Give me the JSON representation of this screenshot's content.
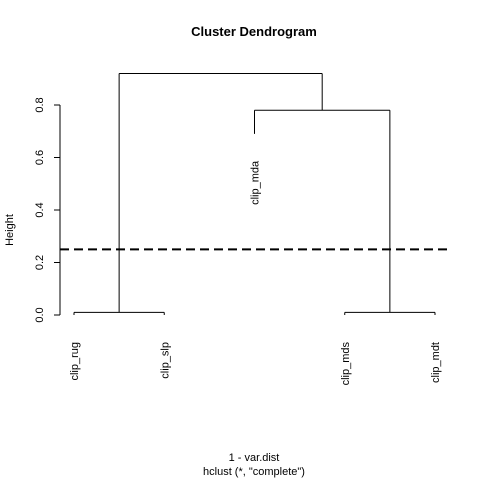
{
  "chart_data": {
    "type": "dendrogram",
    "title": "Cluster Dendrogram",
    "xlabel": "1 - var.dist",
    "sub": "hclust (*, \"complete\")",
    "ylabel": "Height",
    "ylim": [
      0,
      0.96
    ],
    "y_ticks": [
      0.0,
      0.2,
      0.4,
      0.6,
      0.8
    ],
    "y_tick_labels": [
      "0.0",
      "0.2",
      "0.4",
      "0.6",
      "0.8"
    ],
    "leaves": [
      "clip_rug",
      "clip_slp",
      "clip_mda",
      "clip_mds",
      "clip_mdt"
    ],
    "merges": [
      {
        "left": "clip_rug",
        "right": "clip_slp",
        "height": 0.01
      },
      {
        "left": "clip_mds",
        "right": "clip_mdt",
        "height": 0.01
      },
      {
        "left": "clip_mda",
        "right": "clip_mds + clip_mdt",
        "height": 0.78
      },
      {
        "left": "clip_rug + clip_slp",
        "right": "clip_mda + clip_mds + clip_mdt",
        "height": 0.92
      }
    ],
    "leaf_heights": {
      "clip_rug": 0.0,
      "clip_slp": 0.0,
      "clip_mda": 0.69,
      "clip_mds": 0.0,
      "clip_mdt": 0.0
    },
    "cut_height": 0.25,
    "cut_line_style": "dashed",
    "grid": false,
    "legend": "none"
  }
}
